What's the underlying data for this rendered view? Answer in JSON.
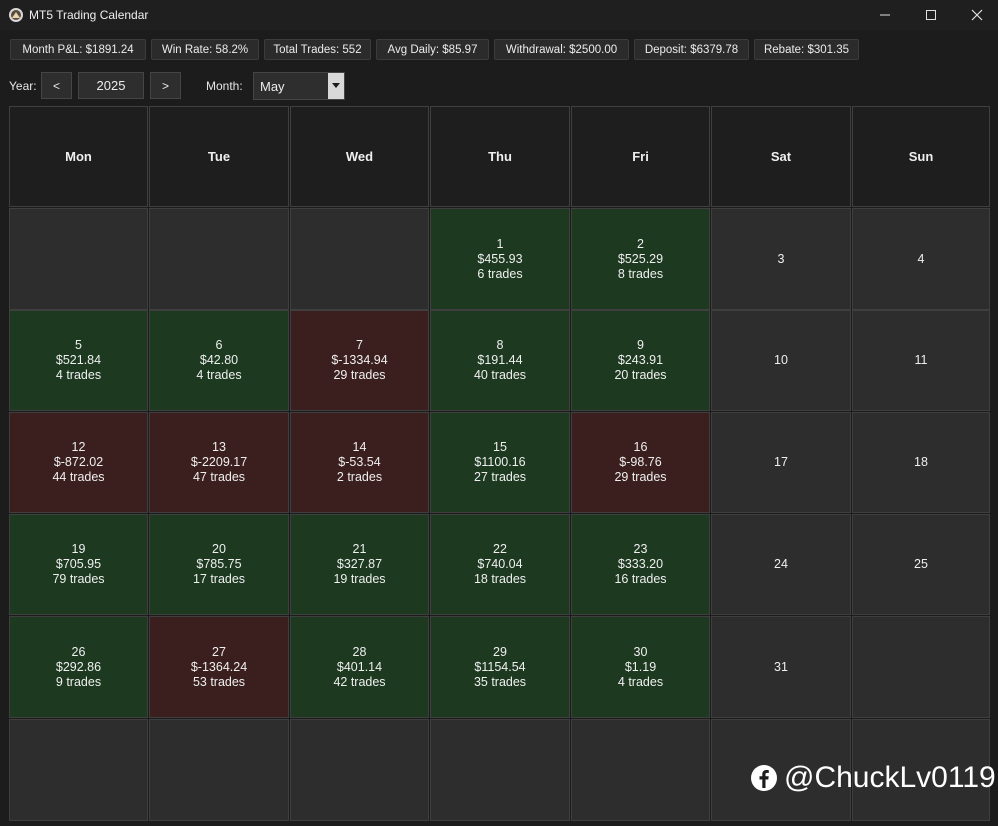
{
  "window": {
    "title": "MT5 Trading Calendar"
  },
  "stats": [
    "Month P&L: $1891.24",
    "Win Rate: 58.2%",
    "Total Trades: 552",
    "Avg Daily: $85.97",
    "Withdrawal: $2500.00",
    "Deposit: $6379.78",
    "Rebate: $301.35"
  ],
  "controls": {
    "year_label": "Year:",
    "prev_label": "<",
    "year_value": "2025",
    "next_label": ">",
    "month_label": "Month:",
    "month_value": "May"
  },
  "weekdays": [
    "Mon",
    "Tue",
    "Wed",
    "Thu",
    "Fri",
    "Sat",
    "Sun"
  ],
  "weeks": [
    [
      {
        "day": "",
        "pnl": "",
        "trades": ""
      },
      {
        "day": "",
        "pnl": "",
        "trades": ""
      },
      {
        "day": "",
        "pnl": "",
        "trades": ""
      },
      {
        "day": "1",
        "pnl": "$455.93",
        "trades": "6 trades",
        "status": "profit"
      },
      {
        "day": "2",
        "pnl": "$525.29",
        "trades": "8 trades",
        "status": "profit"
      },
      {
        "day": "3",
        "pnl": "",
        "trades": ""
      },
      {
        "day": "4",
        "pnl": "",
        "trades": ""
      }
    ],
    [
      {
        "day": "5",
        "pnl": "$521.84",
        "trades": "4 trades",
        "status": "profit"
      },
      {
        "day": "6",
        "pnl": "$42.80",
        "trades": "4 trades",
        "status": "profit"
      },
      {
        "day": "7",
        "pnl": "$-1334.94",
        "trades": "29 trades",
        "status": "loss"
      },
      {
        "day": "8",
        "pnl": "$191.44",
        "trades": "40 trades",
        "status": "profit"
      },
      {
        "day": "9",
        "pnl": "$243.91",
        "trades": "20 trades",
        "status": "profit"
      },
      {
        "day": "10",
        "pnl": "",
        "trades": ""
      },
      {
        "day": "11",
        "pnl": "",
        "trades": ""
      }
    ],
    [
      {
        "day": "12",
        "pnl": "$-872.02",
        "trades": "44 trades",
        "status": "loss"
      },
      {
        "day": "13",
        "pnl": "$-2209.17",
        "trades": "47 trades",
        "status": "loss"
      },
      {
        "day": "14",
        "pnl": "$-53.54",
        "trades": "2 trades",
        "status": "loss"
      },
      {
        "day": "15",
        "pnl": "$1100.16",
        "trades": "27 trades",
        "status": "profit"
      },
      {
        "day": "16",
        "pnl": "$-98.76",
        "trades": "29 trades",
        "status": "loss"
      },
      {
        "day": "17",
        "pnl": "",
        "trades": ""
      },
      {
        "day": "18",
        "pnl": "",
        "trades": ""
      }
    ],
    [
      {
        "day": "19",
        "pnl": "$705.95",
        "trades": "79 trades",
        "status": "profit"
      },
      {
        "day": "20",
        "pnl": "$785.75",
        "trades": "17 trades",
        "status": "profit"
      },
      {
        "day": "21",
        "pnl": "$327.87",
        "trades": "19 trades",
        "status": "profit"
      },
      {
        "day": "22",
        "pnl": "$740.04",
        "trades": "18 trades",
        "status": "profit"
      },
      {
        "day": "23",
        "pnl": "$333.20",
        "trades": "16 trades",
        "status": "profit"
      },
      {
        "day": "24",
        "pnl": "",
        "trades": ""
      },
      {
        "day": "25",
        "pnl": "",
        "trades": ""
      }
    ],
    [
      {
        "day": "26",
        "pnl": "$292.86",
        "trades": "9 trades",
        "status": "profit"
      },
      {
        "day": "27",
        "pnl": "$-1364.24",
        "trades": "53 trades",
        "status": "loss"
      },
      {
        "day": "28",
        "pnl": "$401.14",
        "trades": "42 trades",
        "status": "profit"
      },
      {
        "day": "29",
        "pnl": "$1154.54",
        "trades": "35 trades",
        "status": "profit"
      },
      {
        "day": "30",
        "pnl": "$1.19",
        "trades": "4 trades",
        "status": "profit"
      },
      {
        "day": "31",
        "pnl": "",
        "trades": ""
      },
      {
        "day": "",
        "pnl": "",
        "trades": ""
      }
    ],
    [
      {
        "day": "",
        "pnl": "",
        "trades": ""
      },
      {
        "day": "",
        "pnl": "",
        "trades": ""
      },
      {
        "day": "",
        "pnl": "",
        "trades": ""
      },
      {
        "day": "",
        "pnl": "",
        "trades": ""
      },
      {
        "day": "",
        "pnl": "",
        "trades": ""
      },
      {
        "day": "",
        "pnl": "",
        "trades": ""
      },
      {
        "day": "",
        "pnl": "",
        "trades": ""
      }
    ]
  ],
  "colors": {
    "profit": "#1d3a21",
    "loss": "#3b1f1f",
    "neutral": "#2d2d2d"
  },
  "icons": {
    "app": "app-logo-icon",
    "watermark": "facebook-icon"
  },
  "watermark": {
    "text": "@ChuckLv0119"
  }
}
